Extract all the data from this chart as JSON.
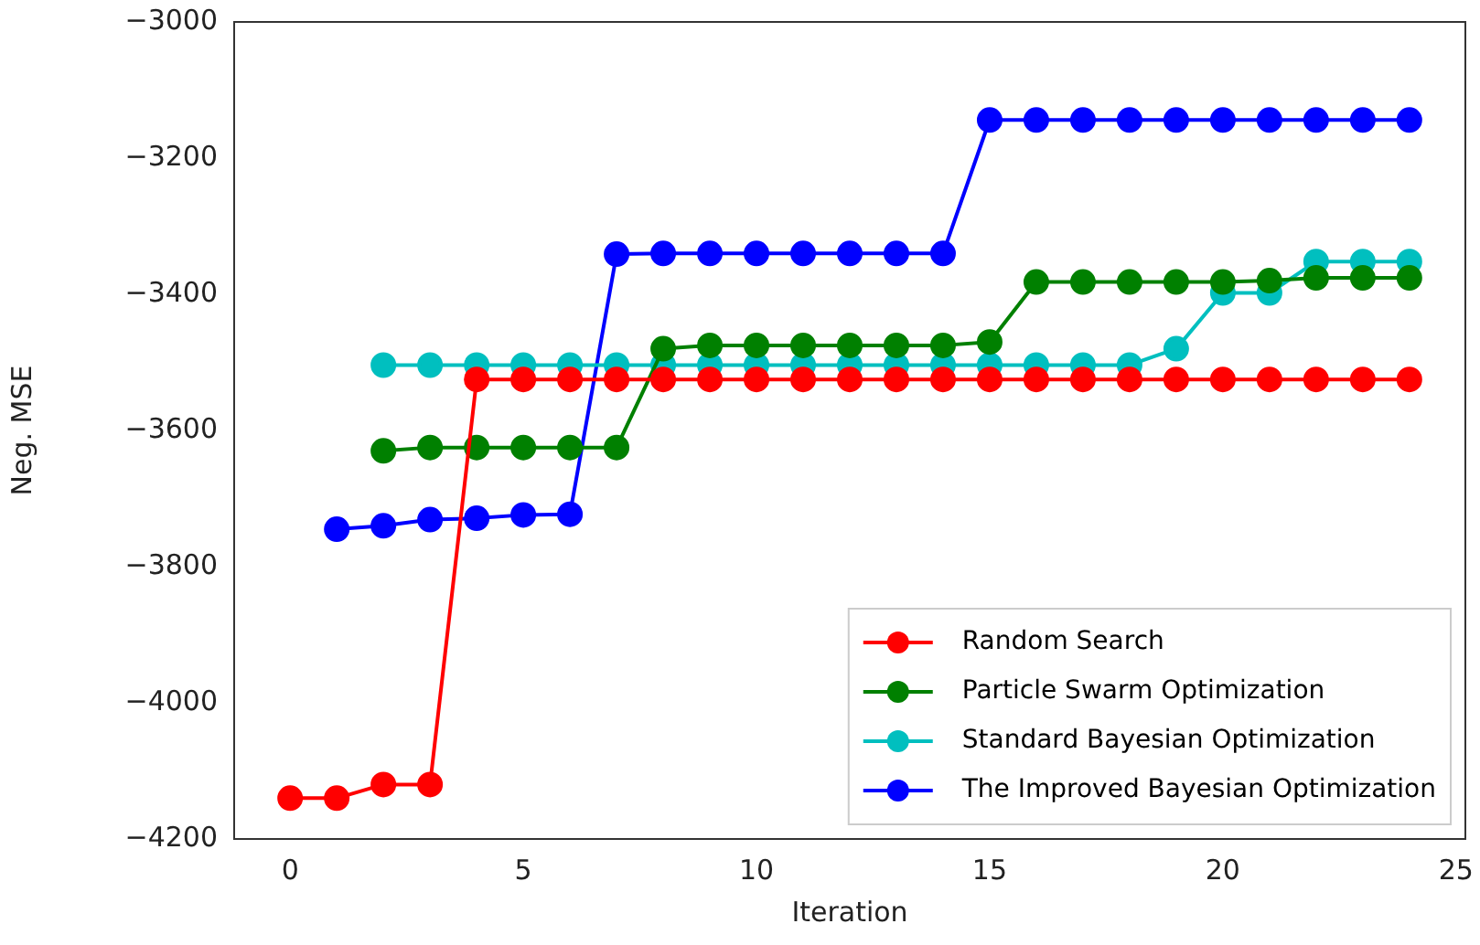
{
  "chart_data": {
    "type": "line",
    "xlabel": "Iteration",
    "ylabel": "Neg. MSE",
    "x": [
      0,
      1,
      2,
      3,
      4,
      5,
      6,
      7,
      8,
      9,
      10,
      11,
      12,
      13,
      14,
      15,
      16,
      17,
      18,
      19,
      20,
      21,
      22,
      23,
      24
    ],
    "xlim": [
      -1.2,
      25.2
    ],
    "xticks": [
      0,
      5,
      10,
      15,
      20,
      25
    ],
    "ylim": [
      -4200,
      -3000
    ],
    "yticks": [
      {
        "value": -4200,
        "label": "−4200"
      },
      {
        "value": -4000,
        "label": "−4000"
      },
      {
        "value": -3800,
        "label": "−3800"
      },
      {
        "value": -3600,
        "label": "−3600"
      },
      {
        "value": -3400,
        "label": "−3400"
      },
      {
        "value": -3200,
        "label": "−3200"
      },
      {
        "value": -3000,
        "label": "−3000"
      }
    ],
    "grid": false,
    "legend": "bottom right",
    "marker": "circle",
    "line_style": "solid",
    "series": [
      {
        "name": "Random Search",
        "color": "#ff0000",
        "values": [
          -4140,
          -4140,
          -4120,
          -4120,
          -3525,
          -3525,
          -3525,
          -3525,
          -3525,
          -3525,
          -3525,
          -3525,
          -3525,
          -3525,
          -3525,
          -3525,
          -3525,
          -3525,
          -3525,
          -3525,
          -3525,
          -3525,
          -3525,
          -3525,
          -3525
        ]
      },
      {
        "name": "Particle Swarm Optimization",
        "color": "#008000",
        "values": [
          null,
          null,
          -3630,
          -3625,
          -3625,
          -3625,
          -3625,
          -3625,
          -3480,
          -3475,
          -3475,
          -3475,
          -3475,
          -3475,
          -3475,
          -3470,
          -3382,
          -3382,
          -3382,
          -3382,
          -3382,
          -3380,
          -3376,
          -3376,
          -3376
        ]
      },
      {
        "name": "Standard Bayesian Optimization",
        "color": "#00bfbf",
        "values": [
          null,
          null,
          -3504,
          -3504,
          -3504,
          -3504,
          -3504,
          -3504,
          -3504,
          -3504,
          -3504,
          -3504,
          -3504,
          -3504,
          -3504,
          -3504,
          -3504,
          -3504,
          -3504,
          -3480,
          -3398,
          -3398,
          -3352,
          -3352,
          -3352
        ]
      },
      {
        "name": "The Improved Bayesian Optimization",
        "color": "#0000ff",
        "values": [
          null,
          -3745,
          -3740,
          -3731,
          -3729,
          -3724,
          -3723,
          -3341,
          -3340,
          -3340,
          -3340,
          -3340,
          -3340,
          -3340,
          -3340,
          -3144,
          -3144,
          -3144,
          -3144,
          -3144,
          -3144,
          -3144,
          -3144,
          -3144,
          -3144
        ]
      }
    ]
  }
}
